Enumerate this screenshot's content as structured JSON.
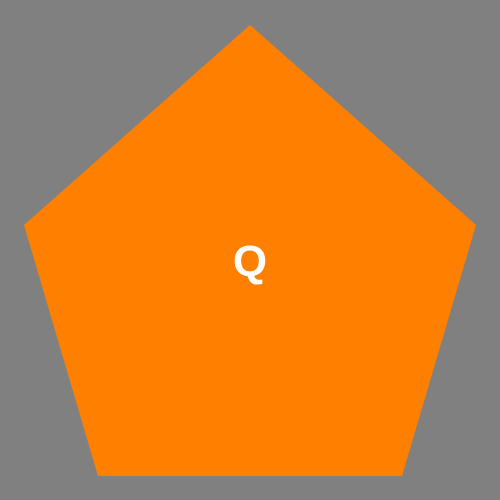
{
  "background_color": "#808080",
  "shape": {
    "kind": "pentagon",
    "fill_color": "#ff8000"
  },
  "label": {
    "text": "Q",
    "color": "#ffffff"
  }
}
